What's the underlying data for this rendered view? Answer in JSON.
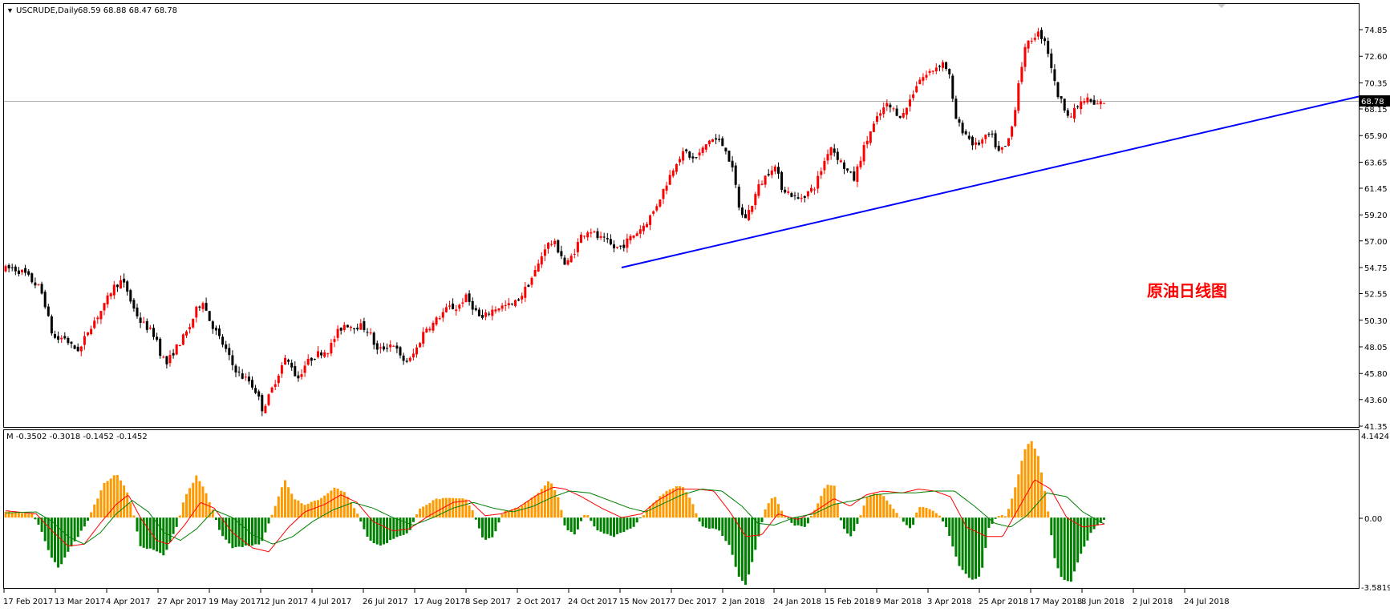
{
  "window": {
    "symbol_title": "USCRUDE,Daily",
    "ohlc": "68.59 68.88 68.47 68.78",
    "menu_arrow_icon": "triangle-down-icon"
  },
  "main_panel": {
    "annotation_text": "原油日线图",
    "current_price_label": "68.78",
    "price_axis_labels": [
      "74.85",
      "72.60",
      "70.35",
      "68.15",
      "65.90",
      "63.65",
      "61.45",
      "59.20",
      "57.00",
      "54.75",
      "52.55",
      "50.30",
      "48.05",
      "45.80",
      "43.60",
      "41.35"
    ],
    "trendline_color": "#0000ff"
  },
  "indicator_panel": {
    "title": "M -0.3502 -0.3018 -0.1452 -0.1452",
    "axis_labels": [
      "4.1424",
      "0.00",
      "-3.5819"
    ],
    "positive_color": "#ff9900",
    "negative_color": "#008000",
    "fast_line_color": "#ff0000",
    "slow_line_color": "#008000"
  },
  "time_axis": {
    "labels": [
      "17 Feb 2017",
      "13 Mar 2017",
      "4 Apr 2017",
      "27 Apr 2017",
      "19 May 2017",
      "12 Jun 2017",
      "4 Jul 2017",
      "26 Jul 2017",
      "17 Aug 2017",
      "8 Sep 2017",
      "2 Oct 2017",
      "24 Oct 2017",
      "15 Nov 2017",
      "7 Dec 2017",
      "2 Jan 2018",
      "24 Jan 2018",
      "15 Feb 2018",
      "9 Mar 2018",
      "3 Apr 2018",
      "25 Apr 2018",
      "17 May 2018",
      "8 Jun 2018",
      "2 Jul 2018",
      "24 Jul 2018"
    ]
  },
  "chart_data": {
    "type": "candlestick",
    "symbol": "USCRUDE",
    "timeframe": "Daily",
    "ylim": [
      41.35,
      74.85
    ],
    "price_path": [
      [
        0,
        54.6
      ],
      [
        10,
        54.7
      ],
      [
        25,
        54.3
      ],
      [
        35,
        53.6
      ],
      [
        45,
        53.0
      ],
      [
        52,
        51.5
      ],
      [
        58,
        49.5
      ],
      [
        65,
        48.6
      ],
      [
        75,
        48.9
      ],
      [
        85,
        48.0
      ],
      [
        95,
        47.8
      ],
      [
        105,
        49.5
      ],
      [
        115,
        50.5
      ],
      [
        125,
        51.5
      ],
      [
        135,
        53.0
      ],
      [
        145,
        53.6
      ],
      [
        152,
        53.1
      ],
      [
        160,
        51.5
      ],
      [
        170,
        50.2
      ],
      [
        180,
        49.6
      ],
      [
        190,
        48.8
      ],
      [
        195,
        47.5
      ],
      [
        203,
        46.6
      ],
      [
        210,
        47.5
      ],
      [
        220,
        48.5
      ],
      [
        230,
        49.5
      ],
      [
        240,
        51.2
      ],
      [
        248,
        52.0
      ],
      [
        255,
        50.5
      ],
      [
        265,
        49.2
      ],
      [
        275,
        48.0
      ],
      [
        285,
        46.5
      ],
      [
        295,
        45.6
      ],
      [
        305,
        45.2
      ],
      [
        315,
        44.2
      ],
      [
        322,
        42.8
      ],
      [
        330,
        43.8
      ],
      [
        340,
        45.5
      ],
      [
        350,
        47.0
      ],
      [
        360,
        46.4
      ],
      [
        365,
        45.2
      ],
      [
        375,
        46.5
      ],
      [
        385,
        47.2
      ],
      [
        395,
        47.6
      ],
      [
        405,
        47.8
      ],
      [
        415,
        49.2
      ],
      [
        425,
        50.0
      ],
      [
        435,
        49.8
      ],
      [
        445,
        49.8
      ],
      [
        455,
        49.4
      ],
      [
        465,
        47.7
      ],
      [
        475,
        48.0
      ],
      [
        485,
        48.4
      ],
      [
        495,
        47.0
      ],
      [
        505,
        46.8
      ],
      [
        515,
        48.0
      ],
      [
        525,
        49.6
      ],
      [
        535,
        50.0
      ],
      [
        545,
        50.8
      ],
      [
        555,
        51.4
      ],
      [
        565,
        51.3
      ],
      [
        575,
        52.3
      ],
      [
        585,
        51.4
      ],
      [
        595,
        50.3
      ],
      [
        605,
        51.0
      ],
      [
        615,
        51.4
      ],
      [
        625,
        51.5
      ],
      [
        635,
        51.6
      ],
      [
        645,
        52.4
      ],
      [
        655,
        53.5
      ],
      [
        665,
        54.8
      ],
      [
        675,
        56.6
      ],
      [
        685,
        56.9
      ],
      [
        695,
        55.8
      ],
      [
        700,
        54.8
      ],
      [
        710,
        56.0
      ],
      [
        720,
        57.5
      ],
      [
        730,
        58.0
      ],
      [
        740,
        57.3
      ],
      [
        750,
        57.0
      ],
      [
        760,
        56.4
      ],
      [
        770,
        56.5
      ],
      [
        780,
        57.2
      ],
      [
        790,
        57.8
      ],
      [
        800,
        58.5
      ],
      [
        810,
        59.5
      ],
      [
        820,
        61.0
      ],
      [
        830,
        62.5
      ],
      [
        840,
        64.0
      ],
      [
        850,
        64.5
      ],
      [
        860,
        63.8
      ],
      [
        870,
        64.6
      ],
      [
        880,
        65.6
      ],
      [
        890,
        65.5
      ],
      [
        900,
        64.8
      ],
      [
        910,
        62.5
      ],
      [
        918,
        59.2
      ],
      [
        925,
        59.0
      ],
      [
        932,
        60.0
      ],
      [
        940,
        61.5
      ],
      [
        950,
        62.5
      ],
      [
        960,
        63.5
      ],
      [
        970,
        61.5
      ],
      [
        980,
        61.0
      ],
      [
        990,
        60.5
      ],
      [
        1000,
        61.0
      ],
      [
        1010,
        61.5
      ],
      [
        1020,
        63.2
      ],
      [
        1030,
        65.1
      ],
      [
        1040,
        64.0
      ],
      [
        1050,
        63.0
      ],
      [
        1060,
        62.2
      ],
      [
        1070,
        64.5
      ],
      [
        1080,
        66.2
      ],
      [
        1090,
        67.5
      ],
      [
        1100,
        68.5
      ],
      [
        1110,
        68.0
      ],
      [
        1120,
        67.5
      ],
      [
        1130,
        69.0
      ],
      [
        1140,
        70.6
      ],
      [
        1150,
        71.0
      ],
      [
        1160,
        71.6
      ],
      [
        1170,
        72.1
      ],
      [
        1178,
        71.3
      ],
      [
        1185,
        67.6
      ],
      [
        1192,
        66.6
      ],
      [
        1200,
        66.0
      ],
      [
        1210,
        65.0
      ],
      [
        1220,
        65.5
      ],
      [
        1230,
        66.0
      ],
      [
        1240,
        64.5
      ],
      [
        1250,
        65.0
      ],
      [
        1258,
        67.0
      ],
      [
        1265,
        70.5
      ],
      [
        1272,
        73.0
      ],
      [
        1280,
        74.0
      ],
      [
        1288,
        74.6
      ],
      [
        1298,
        74.0
      ],
      [
        1305,
        72.0
      ],
      [
        1312,
        69.6
      ],
      [
        1320,
        68.5
      ],
      [
        1330,
        67.5
      ],
      [
        1340,
        68.5
      ],
      [
        1350,
        69.0
      ],
      [
        1360,
        68.4
      ],
      [
        1372,
        68.78
      ]
    ],
    "trendline": {
      "from": [
        "15 Nov 2017",
        54.75
      ],
      "to": [
        "last visible",
        69.2
      ]
    },
    "current_price": 68.78,
    "indicator": {
      "name": "M",
      "values": [
        -0.3502,
        -0.3018,
        -0.1452,
        -0.1452
      ],
      "ylim": [
        -3.5819,
        4.1424
      ],
      "histogram_path": [
        [
          5,
          0.3
        ],
        [
          35,
          0.2
        ],
        [
          45,
          -0.5
        ],
        [
          58,
          -2.0
        ],
        [
          68,
          -2.7
        ],
        [
          80,
          -1.8
        ],
        [
          95,
          -0.8
        ],
        [
          102,
          -0.4
        ],
        [
          110,
          0.4
        ],
        [
          125,
          1.8
        ],
        [
          140,
          2.3
        ],
        [
          152,
          1.5
        ],
        [
          160,
          0.5
        ],
        [
          170,
          -1.5
        ],
        [
          185,
          -1.7
        ],
        [
          200,
          -2.0
        ],
        [
          215,
          -0.5
        ],
        [
          225,
          1.0
        ],
        [
          240,
          2.2
        ],
        [
          250,
          1.5
        ],
        [
          262,
          0.2
        ],
        [
          270,
          -0.8
        ],
        [
          285,
          -1.6
        ],
        [
          300,
          -1.5
        ],
        [
          320,
          -1.4
        ],
        [
          338,
          0.6
        ],
        [
          350,
          2.0
        ],
        [
          362,
          1.0
        ],
        [
          375,
          0.7
        ],
        [
          395,
          1.0
        ],
        [
          412,
          1.6
        ],
        [
          425,
          1.3
        ],
        [
          440,
          0.3
        ],
        [
          455,
          -1.2
        ],
        [
          470,
          -1.5
        ],
        [
          490,
          -1.0
        ],
        [
          505,
          -0.8
        ],
        [
          518,
          0.5
        ],
        [
          540,
          1.0
        ],
        [
          560,
          1.0
        ],
        [
          575,
          1.0
        ],
        [
          585,
          0.3
        ],
        [
          598,
          -1.2
        ],
        [
          610,
          -1.0
        ],
        [
          622,
          0.3
        ],
        [
          640,
          0.5
        ],
        [
          655,
          0.9
        ],
        [
          668,
          1.4
        ],
        [
          680,
          2.0
        ],
        [
          692,
          1.0
        ],
        [
          700,
          -0.6
        ],
        [
          712,
          -0.9
        ],
        [
          725,
          0.3
        ],
        [
          740,
          -0.7
        ],
        [
          760,
          -1.0
        ],
        [
          785,
          -0.5
        ],
        [
          800,
          0.3
        ],
        [
          815,
          1.0
        ],
        [
          830,
          1.5
        ],
        [
          845,
          1.7
        ],
        [
          858,
          0.8
        ],
        [
          870,
          -0.5
        ],
        [
          890,
          -0.6
        ],
        [
          905,
          -1.5
        ],
        [
          915,
          -3.0
        ],
        [
          925,
          -3.6
        ],
        [
          935,
          -2.0
        ],
        [
          950,
          0.6
        ],
        [
          960,
          1.2
        ],
        [
          970,
          0.3
        ],
        [
          985,
          -0.4
        ],
        [
          1000,
          -0.5
        ],
        [
          1015,
          0.8
        ],
        [
          1025,
          1.7
        ],
        [
          1035,
          1.7
        ],
        [
          1045,
          -0.5
        ],
        [
          1055,
          -1.0
        ],
        [
          1062,
          -0.6
        ],
        [
          1075,
          1.0
        ],
        [
          1085,
          1.3
        ],
        [
          1095,
          1.2
        ],
        [
          1110,
          0.4
        ],
        [
          1125,
          -0.4
        ],
        [
          1132,
          -0.6
        ],
        [
          1140,
          0.6
        ],
        [
          1150,
          0.5
        ],
        [
          1165,
          0.2
        ],
        [
          1175,
          -0.5
        ],
        [
          1190,
          -2.5
        ],
        [
          1205,
          -3.3
        ],
        [
          1218,
          -3.1
        ],
        [
          1228,
          -0.5
        ],
        [
          1240,
          0.1
        ],
        [
          1250,
          0.1
        ],
        [
          1262,
          1.8
        ],
        [
          1272,
          3.5
        ],
        [
          1280,
          4.1
        ],
        [
          1290,
          3.2
        ],
        [
          1300,
          0.8
        ],
        [
          1310,
          -2.2
        ],
        [
          1320,
          -3.3
        ],
        [
          1330,
          -3.4
        ],
        [
          1342,
          -2.0
        ],
        [
          1355,
          -0.8
        ],
        [
          1370,
          -0.15
        ]
      ],
      "fast_line_path": [
        [
          5,
          0.35
        ],
        [
          40,
          0.2
        ],
        [
          60,
          -0.7
        ],
        [
          80,
          -1.5
        ],
        [
          100,
          -1.4
        ],
        [
          120,
          -0.3
        ],
        [
          140,
          0.7
        ],
        [
          155,
          1.2
        ],
        [
          170,
          0.0
        ],
        [
          190,
          -1.2
        ],
        [
          205,
          -1.4
        ],
        [
          225,
          -0.4
        ],
        [
          245,
          0.8
        ],
        [
          262,
          0.5
        ],
        [
          285,
          -0.8
        ],
        [
          310,
          -1.6
        ],
        [
          330,
          -1.8
        ],
        [
          355,
          -0.5
        ],
        [
          375,
          0.3
        ],
        [
          400,
          0.7
        ],
        [
          420,
          1.2
        ],
        [
          440,
          0.8
        ],
        [
          460,
          -0.2
        ],
        [
          485,
          -0.7
        ],
        [
          505,
          -0.6
        ],
        [
          530,
          0.1
        ],
        [
          560,
          0.8
        ],
        [
          580,
          0.9
        ],
        [
          600,
          0.1
        ],
        [
          620,
          0.2
        ],
        [
          640,
          0.5
        ],
        [
          665,
          1.2
        ],
        [
          685,
          1.6
        ],
        [
          700,
          1.5
        ],
        [
          720,
          1.1
        ],
        [
          745,
          0.5
        ],
        [
          770,
          0.0
        ],
        [
          795,
          0.2
        ],
        [
          815,
          0.9
        ],
        [
          840,
          1.5
        ],
        [
          865,
          1.5
        ],
        [
          885,
          1.4
        ],
        [
          905,
          0.3
        ],
        [
          925,
          -1.0
        ],
        [
          945,
          -0.9
        ],
        [
          965,
          0.2
        ],
        [
          990,
          -0.1
        ],
        [
          1010,
          0.3
        ],
        [
          1035,
          1.0
        ],
        [
          1055,
          0.6
        ],
        [
          1075,
          1.2
        ],
        [
          1095,
          1.4
        ],
        [
          1120,
          1.3
        ],
        [
          1140,
          1.5
        ],
        [
          1160,
          1.4
        ],
        [
          1180,
          1.1
        ],
        [
          1200,
          -0.5
        ],
        [
          1225,
          -1.0
        ],
        [
          1245,
          -1.0
        ],
        [
          1265,
          0.5
        ],
        [
          1285,
          2.0
        ],
        [
          1305,
          1.5
        ],
        [
          1325,
          0.0
        ],
        [
          1345,
          -0.5
        ],
        [
          1370,
          -0.35
        ]
      ],
      "slow_line_path": [
        [
          5,
          0.25
        ],
        [
          40,
          0.3
        ],
        [
          60,
          -0.2
        ],
        [
          80,
          -1.0
        ],
        [
          100,
          -1.4
        ],
        [
          120,
          -0.8
        ],
        [
          140,
          0.2
        ],
        [
          160,
          0.9
        ],
        [
          180,
          0.3
        ],
        [
          200,
          -0.8
        ],
        [
          220,
          -1.2
        ],
        [
          240,
          -0.6
        ],
        [
          262,
          0.4
        ],
        [
          285,
          0.0
        ],
        [
          310,
          -0.9
        ],
        [
          335,
          -1.4
        ],
        [
          360,
          -1.0
        ],
        [
          385,
          -0.2
        ],
        [
          410,
          0.4
        ],
        [
          435,
          0.8
        ],
        [
          460,
          0.5
        ],
        [
          485,
          0.0
        ],
        [
          510,
          -0.4
        ],
        [
          535,
          0.0
        ],
        [
          560,
          0.5
        ],
        [
          585,
          0.8
        ],
        [
          610,
          0.5
        ],
        [
          635,
          0.3
        ],
        [
          660,
          0.6
        ],
        [
          685,
          1.1
        ],
        [
          705,
          1.4
        ],
        [
          730,
          1.3
        ],
        [
          755,
          0.9
        ],
        [
          780,
          0.5
        ],
        [
          800,
          0.3
        ],
        [
          820,
          0.7
        ],
        [
          845,
          1.2
        ],
        [
          870,
          1.5
        ],
        [
          895,
          1.4
        ],
        [
          920,
          0.6
        ],
        [
          940,
          -0.3
        ],
        [
          960,
          -0.4
        ],
        [
          985,
          0.0
        ],
        [
          1010,
          0.2
        ],
        [
          1035,
          0.7
        ],
        [
          1060,
          0.9
        ],
        [
          1085,
          1.2
        ],
        [
          1110,
          1.3
        ],
        [
          1135,
          1.3
        ],
        [
          1160,
          1.4
        ],
        [
          1185,
          1.4
        ],
        [
          1210,
          0.6
        ],
        [
          1235,
          -0.3
        ],
        [
          1255,
          -0.5
        ],
        [
          1275,
          0.1
        ],
        [
          1300,
          1.3
        ],
        [
          1325,
          1.1
        ],
        [
          1345,
          0.3
        ],
        [
          1370,
          -0.3
        ]
      ]
    }
  }
}
